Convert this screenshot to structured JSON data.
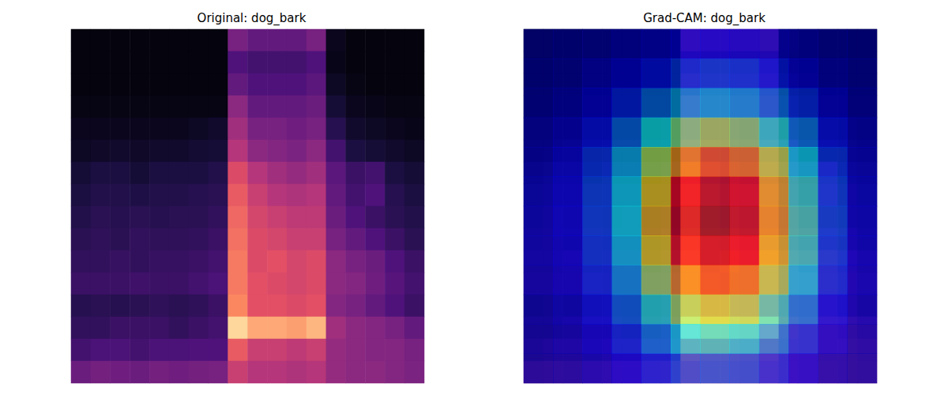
{
  "chart_data": [
    {
      "type": "heatmap",
      "title": "Original: dog_bark",
      "tick_labels": false,
      "value_range": [
        0,
        1
      ],
      "cells": [
        [
          0.02,
          0.02,
          0.02,
          0.02,
          0.02,
          0.02,
          0.02,
          0.02,
          0.35,
          0.3,
          0.3,
          0.3,
          0.35,
          0.05,
          0.02,
          0.02,
          0.02,
          0.02
        ],
        [
          0.02,
          0.02,
          0.02,
          0.02,
          0.02,
          0.02,
          0.02,
          0.02,
          0.25,
          0.22,
          0.22,
          0.22,
          0.25,
          0.04,
          0.02,
          0.02,
          0.02,
          0.02
        ],
        [
          0.02,
          0.02,
          0.02,
          0.02,
          0.02,
          0.02,
          0.02,
          0.02,
          0.3,
          0.25,
          0.25,
          0.25,
          0.28,
          0.06,
          0.03,
          0.02,
          0.02,
          0.02
        ],
        [
          0.03,
          0.03,
          0.03,
          0.03,
          0.03,
          0.03,
          0.03,
          0.03,
          0.4,
          0.3,
          0.3,
          0.3,
          0.32,
          0.1,
          0.05,
          0.04,
          0.03,
          0.03
        ],
        [
          0.05,
          0.05,
          0.05,
          0.05,
          0.05,
          0.05,
          0.06,
          0.08,
          0.45,
          0.35,
          0.35,
          0.33,
          0.35,
          0.15,
          0.08,
          0.06,
          0.05,
          0.04
        ],
        [
          0.06,
          0.07,
          0.08,
          0.07,
          0.08,
          0.08,
          0.09,
          0.1,
          0.5,
          0.4,
          0.38,
          0.36,
          0.4,
          0.22,
          0.12,
          0.1,
          0.08,
          0.06
        ],
        [
          0.1,
          0.12,
          0.12,
          0.1,
          0.12,
          0.12,
          0.12,
          0.14,
          0.6,
          0.5,
          0.45,
          0.42,
          0.45,
          0.28,
          0.2,
          0.22,
          0.12,
          0.1
        ],
        [
          0.12,
          0.14,
          0.14,
          0.13,
          0.14,
          0.14,
          0.15,
          0.16,
          0.65,
          0.55,
          0.5,
          0.48,
          0.5,
          0.3,
          0.22,
          0.25,
          0.15,
          0.12
        ],
        [
          0.14,
          0.16,
          0.15,
          0.16,
          0.15,
          0.16,
          0.16,
          0.18,
          0.68,
          0.58,
          0.55,
          0.52,
          0.52,
          0.32,
          0.25,
          0.2,
          0.16,
          0.14
        ],
        [
          0.16,
          0.17,
          0.16,
          0.18,
          0.17,
          0.17,
          0.18,
          0.2,
          0.7,
          0.6,
          0.58,
          0.55,
          0.55,
          0.35,
          0.3,
          0.25,
          0.2,
          0.16
        ],
        [
          0.18,
          0.18,
          0.19,
          0.18,
          0.19,
          0.19,
          0.2,
          0.22,
          0.72,
          0.6,
          0.62,
          0.58,
          0.6,
          0.4,
          0.35,
          0.32,
          0.25,
          0.2
        ],
        [
          0.2,
          0.2,
          0.2,
          0.21,
          0.2,
          0.2,
          0.22,
          0.24,
          0.72,
          0.62,
          0.6,
          0.58,
          0.6,
          0.4,
          0.38,
          0.33,
          0.27,
          0.22
        ],
        [
          0.15,
          0.16,
          0.15,
          0.16,
          0.17,
          0.16,
          0.17,
          0.2,
          0.75,
          0.62,
          0.62,
          0.6,
          0.62,
          0.38,
          0.35,
          0.3,
          0.25,
          0.2
        ],
        [
          0.18,
          0.18,
          0.2,
          0.2,
          0.2,
          0.18,
          0.2,
          0.22,
          0.92,
          0.82,
          0.82,
          0.8,
          0.85,
          0.45,
          0.4,
          0.38,
          0.35,
          0.3
        ],
        [
          0.22,
          0.24,
          0.24,
          0.22,
          0.24,
          0.24,
          0.25,
          0.25,
          0.65,
          0.55,
          0.55,
          0.52,
          0.55,
          0.42,
          0.4,
          0.38,
          0.38,
          0.35
        ],
        [
          0.32,
          0.34,
          0.33,
          0.32,
          0.34,
          0.33,
          0.34,
          0.35,
          0.55,
          0.5,
          0.5,
          0.48,
          0.5,
          0.42,
          0.4,
          0.4,
          0.38,
          0.36
        ]
      ]
    },
    {
      "type": "heatmap",
      "title": "Grad-CAM: dog_bark",
      "tick_labels": false,
      "value_range": [
        0,
        1
      ],
      "cells": [
        [
          0.02,
          0.02,
          0.02,
          0.02,
          0.02,
          0.02,
          0.02,
          0.02,
          0.35,
          0.3,
          0.3,
          0.3,
          0.35,
          0.05,
          0.02,
          0.02,
          0.02,
          0.02
        ],
        [
          0.02,
          0.02,
          0.02,
          0.02,
          0.02,
          0.02,
          0.02,
          0.02,
          0.25,
          0.22,
          0.22,
          0.22,
          0.25,
          0.04,
          0.02,
          0.02,
          0.02,
          0.02
        ],
        [
          0.02,
          0.02,
          0.02,
          0.02,
          0.02,
          0.02,
          0.02,
          0.02,
          0.3,
          0.25,
          0.25,
          0.25,
          0.28,
          0.06,
          0.03,
          0.02,
          0.02,
          0.02
        ],
        [
          0.03,
          0.03,
          0.03,
          0.03,
          0.03,
          0.03,
          0.03,
          0.03,
          0.4,
          0.3,
          0.3,
          0.3,
          0.32,
          0.1,
          0.05,
          0.04,
          0.03,
          0.03
        ],
        [
          0.05,
          0.05,
          0.05,
          0.05,
          0.05,
          0.05,
          0.06,
          0.08,
          0.45,
          0.35,
          0.35,
          0.33,
          0.35,
          0.15,
          0.08,
          0.06,
          0.05,
          0.04
        ],
        [
          0.06,
          0.07,
          0.08,
          0.07,
          0.08,
          0.08,
          0.09,
          0.1,
          0.5,
          0.4,
          0.38,
          0.36,
          0.4,
          0.22,
          0.12,
          0.1,
          0.08,
          0.06
        ],
        [
          0.1,
          0.12,
          0.12,
          0.1,
          0.12,
          0.12,
          0.12,
          0.14,
          0.6,
          0.5,
          0.45,
          0.42,
          0.45,
          0.28,
          0.2,
          0.22,
          0.12,
          0.1
        ],
        [
          0.12,
          0.14,
          0.14,
          0.13,
          0.14,
          0.14,
          0.15,
          0.16,
          0.65,
          0.55,
          0.5,
          0.48,
          0.5,
          0.3,
          0.22,
          0.25,
          0.15,
          0.12
        ],
        [
          0.14,
          0.16,
          0.15,
          0.16,
          0.15,
          0.16,
          0.16,
          0.18,
          0.68,
          0.58,
          0.55,
          0.52,
          0.52,
          0.32,
          0.25,
          0.2,
          0.16,
          0.14
        ],
        [
          0.16,
          0.17,
          0.16,
          0.18,
          0.17,
          0.17,
          0.18,
          0.2,
          0.7,
          0.6,
          0.58,
          0.55,
          0.55,
          0.35,
          0.3,
          0.25,
          0.2,
          0.16
        ],
        [
          0.18,
          0.18,
          0.19,
          0.18,
          0.19,
          0.19,
          0.2,
          0.22,
          0.72,
          0.6,
          0.62,
          0.58,
          0.6,
          0.4,
          0.35,
          0.32,
          0.25,
          0.2
        ],
        [
          0.2,
          0.2,
          0.2,
          0.21,
          0.2,
          0.2,
          0.22,
          0.24,
          0.72,
          0.62,
          0.6,
          0.58,
          0.6,
          0.4,
          0.38,
          0.33,
          0.27,
          0.22
        ],
        [
          0.15,
          0.16,
          0.15,
          0.16,
          0.17,
          0.16,
          0.17,
          0.2,
          0.75,
          0.62,
          0.62,
          0.6,
          0.62,
          0.38,
          0.35,
          0.3,
          0.25,
          0.2
        ],
        [
          0.18,
          0.18,
          0.2,
          0.2,
          0.2,
          0.18,
          0.2,
          0.22,
          0.92,
          0.82,
          0.82,
          0.8,
          0.85,
          0.45,
          0.4,
          0.38,
          0.35,
          0.3
        ],
        [
          0.22,
          0.24,
          0.24,
          0.22,
          0.24,
          0.24,
          0.25,
          0.25,
          0.65,
          0.55,
          0.55,
          0.52,
          0.55,
          0.42,
          0.4,
          0.38,
          0.38,
          0.35
        ],
        [
          0.32,
          0.34,
          0.33,
          0.32,
          0.34,
          0.33,
          0.34,
          0.35,
          0.55,
          0.5,
          0.5,
          0.48,
          0.5,
          0.42,
          0.4,
          0.4,
          0.38,
          0.36
        ]
      ],
      "cam_range": [
        0,
        1
      ],
      "cam_cells": [
        [
          0.02,
          0.03,
          0.04,
          0.06,
          0.08,
          0.1,
          0.11,
          0.1,
          0.08,
          0.06,
          0.04,
          0.03
        ],
        [
          0.03,
          0.04,
          0.07,
          0.1,
          0.14,
          0.18,
          0.2,
          0.19,
          0.15,
          0.1,
          0.06,
          0.04
        ],
        [
          0.04,
          0.06,
          0.1,
          0.16,
          0.24,
          0.3,
          0.33,
          0.31,
          0.25,
          0.17,
          0.1,
          0.05
        ],
        [
          0.05,
          0.08,
          0.14,
          0.24,
          0.38,
          0.5,
          0.55,
          0.52,
          0.4,
          0.26,
          0.14,
          0.07
        ],
        [
          0.06,
          0.1,
          0.18,
          0.32,
          0.55,
          0.72,
          0.78,
          0.74,
          0.58,
          0.36,
          0.18,
          0.08
        ],
        [
          0.07,
          0.11,
          0.2,
          0.36,
          0.65,
          0.88,
          0.95,
          0.9,
          0.68,
          0.42,
          0.2,
          0.09
        ],
        [
          0.07,
          0.11,
          0.2,
          0.37,
          0.68,
          0.92,
          1.0,
          0.94,
          0.7,
          0.44,
          0.21,
          0.09
        ],
        [
          0.07,
          0.1,
          0.19,
          0.35,
          0.64,
          0.86,
          0.92,
          0.88,
          0.66,
          0.42,
          0.2,
          0.09
        ],
        [
          0.06,
          0.09,
          0.17,
          0.3,
          0.54,
          0.72,
          0.78,
          0.74,
          0.56,
          0.36,
          0.18,
          0.08
        ],
        [
          0.05,
          0.08,
          0.14,
          0.24,
          0.4,
          0.54,
          0.58,
          0.55,
          0.42,
          0.28,
          0.14,
          0.07
        ],
        [
          0.04,
          0.06,
          0.1,
          0.17,
          0.27,
          0.36,
          0.4,
          0.37,
          0.28,
          0.18,
          0.1,
          0.05
        ],
        [
          0.03,
          0.04,
          0.07,
          0.11,
          0.16,
          0.21,
          0.23,
          0.22,
          0.17,
          0.11,
          0.06,
          0.04
        ]
      ]
    }
  ]
}
